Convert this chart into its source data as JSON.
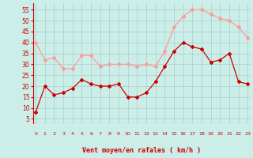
{
  "x": [
    0,
    1,
    2,
    3,
    4,
    5,
    6,
    7,
    8,
    9,
    10,
    11,
    12,
    13,
    14,
    15,
    16,
    17,
    18,
    19,
    20,
    21,
    22,
    23
  ],
  "wind_avg": [
    8,
    20,
    16,
    17,
    19,
    23,
    21,
    20,
    20,
    21,
    15,
    15,
    17,
    22,
    29,
    36,
    40,
    38,
    37,
    31,
    32,
    35,
    22,
    21
  ],
  "wind_gust": [
    40,
    32,
    33,
    28,
    28,
    34,
    34,
    29,
    30,
    30,
    30,
    29,
    30,
    29,
    36,
    47,
    52,
    55,
    55,
    53,
    51,
    50,
    47,
    42
  ],
  "avg_color": "#cc0000",
  "gust_color": "#ff9999",
  "bg_color": "#cceee8",
  "grid_color": "#aacccc",
  "xlabel": "Vent moyen/en rafales ( km/h )",
  "yticks": [
    5,
    10,
    15,
    20,
    25,
    30,
    35,
    40,
    45,
    50,
    55
  ],
  "ylim": [
    3,
    58
  ],
  "xlim": [
    -0.3,
    23.3
  ]
}
